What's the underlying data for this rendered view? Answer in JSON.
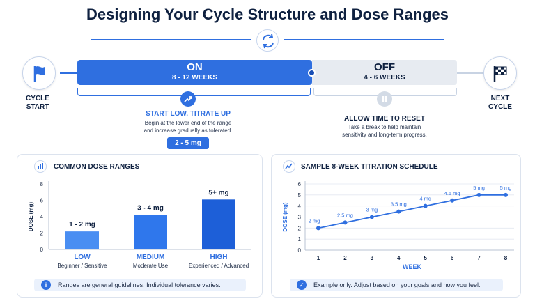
{
  "title": "Designing Your Cycle Structure and Dose Ranges",
  "timeline": {
    "start_label_1": "CYCLE",
    "start_label_2": "START",
    "end_label_1": "NEXT",
    "end_label_2": "CYCLE",
    "on_title": "ON",
    "on_weeks": "8 - 12 WEEKS",
    "off_title": "OFF",
    "off_weeks": "4 - 6 WEEKS",
    "on_phase_heading": "START LOW, TITRATE UP",
    "on_phase_text_1": "Begin at the lower end of the range",
    "on_phase_text_2": "and increase gradually as tolerated.",
    "on_phase_dose": "2 - 5 mg",
    "off_phase_heading": "ALLOW TIME TO RESET",
    "off_phase_text_1": "Take a break to help maintain",
    "off_phase_text_2": "sensitivity and long-term progress."
  },
  "colors": {
    "primary": "#2f6fe0",
    "dark": "#0f2140",
    "grey_bar": "#e7ebf1",
    "note_bg": "#eaf1fc"
  },
  "chart_data": [
    {
      "type": "bar",
      "title": "COMMON DOSE RANGES",
      "ylabel": "DOSE (mg)",
      "ylim": [
        0,
        8
      ],
      "yticks": [
        0,
        2,
        4,
        6,
        8
      ],
      "categories": [
        "LOW",
        "MEDIUM",
        "HIGH"
      ],
      "subtitles": [
        "Beginner / Sensitive",
        "Moderate Use",
        "Experienced / Advanced"
      ],
      "values": [
        2.2,
        4.2,
        6.1
      ],
      "data_labels": [
        "1 - 2 mg",
        "3 - 4 mg",
        "5+ mg"
      ],
      "bar_colors": [
        "#4a8ef2",
        "#2f77ec",
        "#1d5fd8"
      ],
      "note": "Ranges are general guidelines. Individual tolerance varies."
    },
    {
      "type": "line",
      "title": "SAMPLE 8-WEEK TITRATION SCHEDULE",
      "xlabel": "WEEK",
      "ylabel": "DOSE (mg)",
      "ylim": [
        0,
        6
      ],
      "yticks": [
        0,
        1,
        2,
        3,
        4,
        5,
        6
      ],
      "x": [
        1,
        2,
        3,
        4,
        5,
        6,
        7,
        8
      ],
      "y": [
        2,
        2.5,
        3,
        3.5,
        4,
        4.5,
        5,
        5
      ],
      "data_labels": [
        "2 mg",
        "2.5 mg",
        "3 mg",
        "3.5 mg",
        "4 mg",
        "4.5 mg",
        "5 mg",
        "5 mg"
      ],
      "grid": true,
      "note": "Example only. Adjust based on your goals and how you feel."
    }
  ]
}
